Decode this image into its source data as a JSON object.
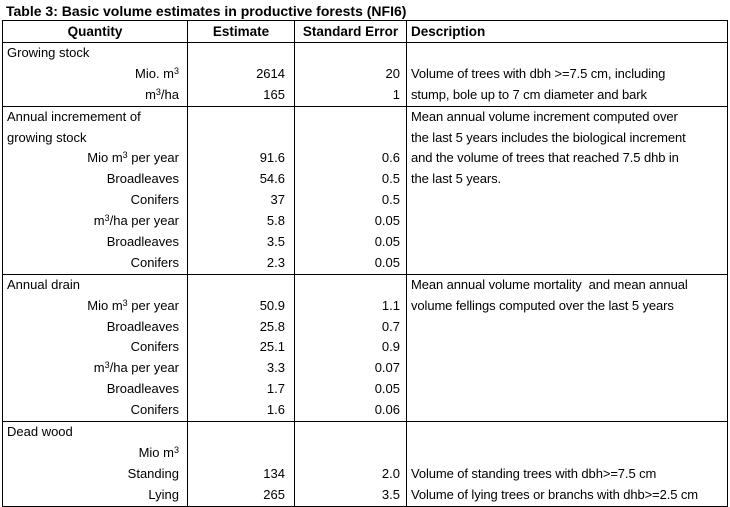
{
  "title": "Table 3: Basic volume estimates in productive forests (NFI6)",
  "columns": [
    "Quantity",
    "Estimate",
    "Standard Error",
    "Description"
  ],
  "sections": [
    {
      "name": "growing-stock",
      "lines": [
        {
          "q": "Growing stock",
          "header": true,
          "est": "",
          "se": "",
          "d": ""
        },
        {
          "q": "Mio. m^{3}",
          "est": "2614",
          "se": "20",
          "d": "Volume of trees with dbh >=7.5 cm, including"
        },
        {
          "q": "m^{3}/ha",
          "est": "165",
          "se": "1",
          "d": "stump, bole up to 7 cm diameter and bark"
        }
      ]
    },
    {
      "name": "annual-increment-of-growing-stock",
      "lines": [
        {
          "q": "Annual incremement of",
          "header": true,
          "est": "",
          "se": "",
          "d": "Mean annual volume increment computed over"
        },
        {
          "q": "growing stock",
          "header": true,
          "est": "",
          "se": "",
          "d": "the last 5 years includes the biological increment"
        },
        {
          "q": "Mio m^{3} per year",
          "est": "91.6",
          "se": "0.6",
          "d": "and the volume of trees that reached 7.5 dhb in"
        },
        {
          "q": "Broadleaves",
          "est": "54.6",
          "se": "0.5",
          "d": "the last 5 years."
        },
        {
          "q": "Conifers",
          "est": "37",
          "se": "0.5",
          "d": ""
        },
        {
          "q": "m^{3}/ha per year",
          "est": "5.8",
          "se": "0.05",
          "d": ""
        },
        {
          "q": "Broadleaves",
          "est": "3.5",
          "se": "0.05",
          "d": ""
        },
        {
          "q": "Conifers",
          "est": "2.3",
          "se": "0.05",
          "d": ""
        }
      ]
    },
    {
      "name": "annual-drain",
      "lines": [
        {
          "q": "Annual drain",
          "header": true,
          "est": "",
          "se": "",
          "d": "Mean annual volume mortality  and mean annual"
        },
        {
          "q": "Mio m^{3} per year",
          "est": "50.9",
          "se": "1.1",
          "d": "volume fellings computed over the last 5 years"
        },
        {
          "q": "Broadleaves",
          "est": "25.8",
          "se": "0.7",
          "d": ""
        },
        {
          "q": "Conifers",
          "est": "25.1",
          "se": "0.9",
          "d": ""
        },
        {
          "q": "m^{3}/ha per year",
          "est": "3.3",
          "se": "0.07",
          "d": ""
        },
        {
          "q": "Broadleaves",
          "est": "1.7",
          "se": "0.05",
          "d": ""
        },
        {
          "q": "Conifers",
          "est": "1.6",
          "se": "0.06",
          "d": ""
        }
      ]
    },
    {
      "name": "dead-wood",
      "lines": [
        {
          "q": "Dead wood",
          "header": true,
          "est": "",
          "se": "",
          "d": ""
        },
        {
          "q": "Mio m^{3}",
          "est": "",
          "se": "",
          "d": ""
        },
        {
          "q": "Standing",
          "est": "134",
          "se": "2.0",
          "d": "Volume of standing trees with dbh>=7.5 cm"
        },
        {
          "q": "Lying",
          "est": "265",
          "se": "3.5",
          "d": "Volume of lying trees or branchs with dhb>=2.5 cm"
        }
      ]
    }
  ]
}
